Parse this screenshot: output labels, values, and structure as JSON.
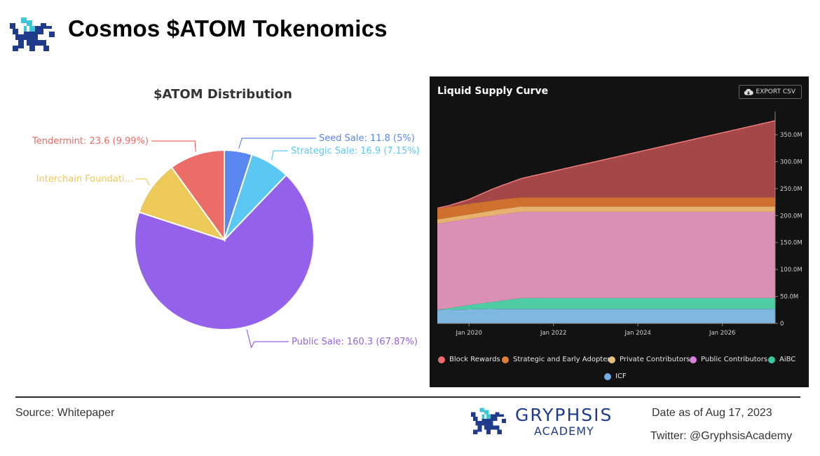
{
  "header": {
    "title": "Cosmos $ATOM Tokenomics"
  },
  "colors": {
    "brand": "#1f3b8c",
    "accent": "#3fc6d6"
  },
  "chart_data": [
    {
      "type": "pie",
      "title": "$ATOM Distribution",
      "slices": [
        {
          "label": "Seed Sale: 11.8 (5%)",
          "value": 11.8,
          "percent": 5,
          "color": "#5a86f0"
        },
        {
          "label": "Strategic Sale: 16.9 (7.15%)",
          "value": 16.9,
          "percent": 7.15,
          "color": "#5bc8f3"
        },
        {
          "label": "Public Sale: 160.3 (67.87%)",
          "value": 160.3,
          "percent": 67.87,
          "color": "#9461eb"
        },
        {
          "label": "Interchain Foundati...",
          "value": 23.6,
          "percent": 10.0,
          "color": "#edc95a"
        },
        {
          "label": "Tendermint: 23.6 (9.99%)",
          "value": 23.6,
          "percent": 9.99,
          "color": "#ec6c68"
        }
      ]
    },
    {
      "type": "area",
      "title": "Liquid Supply Curve",
      "export_label": "EXPORT CSV",
      "x_ticks": [
        "Jan 2020",
        "Jan 2022",
        "Jan 2024",
        "Jan 2026"
      ],
      "y_ticks": [
        "0",
        "50.0M",
        "100.0M",
        "150.0M",
        "200.0M",
        "250.0M",
        "300.0M",
        "350.0M"
      ],
      "xlim": [
        2019.25,
        2027.25
      ],
      "ylim": [
        0,
        380
      ],
      "series": [
        {
          "name": "ICF",
          "color": "#7eb7e0",
          "x": [
            2019.25,
            2020,
            2020.75,
            2021.25,
            2027.25
          ],
          "y": [
            25,
            26,
            27,
            27,
            27
          ]
        },
        {
          "name": "AiBC",
          "color": "#4ecda4",
          "x": [
            2019.25,
            2020,
            2020.75,
            2021.25,
            2027.25
          ],
          "y": [
            0,
            8,
            15,
            20,
            20
          ]
        },
        {
          "name": "Public Contributors",
          "color": "#dc8fb4",
          "x": [
            2019.25,
            2020,
            2020.75,
            2021.25,
            2027.25
          ],
          "y": [
            160,
            160,
            160,
            160,
            160
          ]
        },
        {
          "name": "Private Contributors",
          "color": "#e7b26f",
          "x": [
            2019.25,
            2020,
            2020.75,
            2021.25,
            2027.25
          ],
          "y": [
            8,
            8,
            10,
            10,
            10
          ]
        },
        {
          "name": "Strategic and Early Adopters",
          "color": "#d0702f",
          "x": [
            2019.25,
            2020,
            2020.75,
            2021.25,
            2027.25
          ],
          "y": [
            20,
            20,
            18,
            17,
            17
          ]
        },
        {
          "name": "Block Rewards",
          "color": "#a44748",
          "x": [
            2019.25,
            2019.5,
            2020,
            2020.5,
            2021,
            2021.25,
            2027.25
          ],
          "y": [
            1,
            2,
            8,
            20,
            30,
            35,
            142
          ]
        }
      ],
      "legend": [
        {
          "name": "Block Rewards",
          "color": "#ee6b6e"
        },
        {
          "name": "Strategic and Early Adopters",
          "color": "#de7e37"
        },
        {
          "name": "Private Contributors",
          "color": "#e6c17a"
        },
        {
          "name": "Public Contributors",
          "color": "#da7fdb"
        },
        {
          "name": "AiBC",
          "color": "#3ac7a1"
        },
        {
          "name": "ICF",
          "color": "#72aee6"
        }
      ],
      "legend_position": "bottom"
    }
  ],
  "footer": {
    "source": "Source: Whitepaper",
    "brand_name": "GRYPHSIS",
    "brand_sub": "ACADEMY",
    "date": "Date as of Aug 17, 2023",
    "twitter": "Twitter: @GryphsisAcademy"
  }
}
